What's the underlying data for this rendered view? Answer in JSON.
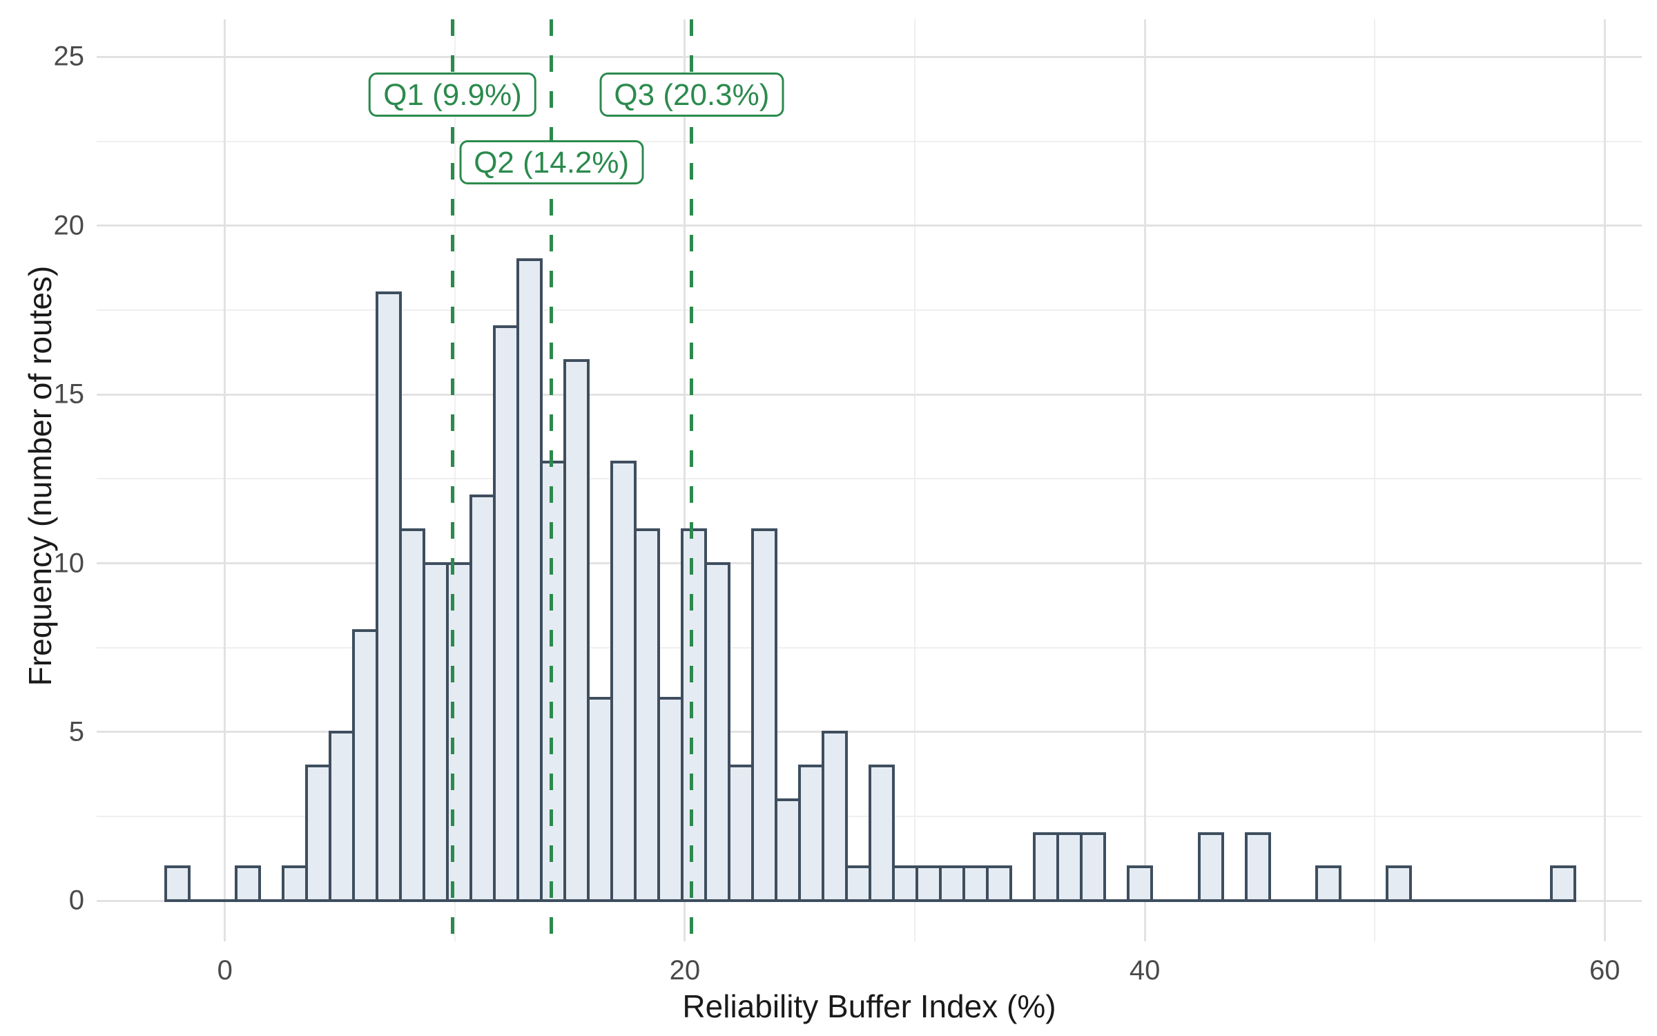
{
  "chart_data": {
    "type": "bar",
    "subtype": "histogram",
    "title": "",
    "xlabel": "Reliability Buffer Index (%)",
    "ylabel": "Frequency (number of routes)",
    "bin_start": -2.57,
    "bin_width": 1.021,
    "counts": [
      1,
      0,
      0,
      1,
      0,
      1,
      4,
      5,
      8,
      18,
      11,
      10,
      10,
      12,
      17,
      19,
      13,
      16,
      6,
      13,
      11,
      6,
      11,
      10,
      4,
      11,
      3,
      4,
      5,
      1,
      4,
      1,
      1,
      1,
      1,
      1,
      0,
      2,
      2,
      2,
      0,
      1,
      0,
      0,
      2,
      0,
      2,
      0,
      0,
      1,
      0,
      0,
      1,
      0,
      0,
      0,
      0,
      0,
      0,
      1
    ],
    "x_ticks": [
      0,
      20,
      40,
      60
    ],
    "x_minor_ticks": [
      10,
      30,
      50
    ],
    "y_ticks": [
      0,
      5,
      10,
      15,
      20,
      25
    ],
    "y_minor_ticks": [
      2.5,
      7.5,
      12.5,
      17.5,
      22.5
    ],
    "xlim": [
      -5.6,
      61.6
    ],
    "ylim": [
      -1.2,
      26.1
    ],
    "grid": "on",
    "legend": "none",
    "annotations": [
      {
        "id": "q1",
        "label": "Q1 (9.9%)",
        "value": 9.9,
        "row": 0
      },
      {
        "id": "q2",
        "label": "Q2 (14.2%)",
        "value": 14.2,
        "row": 1
      },
      {
        "id": "q3",
        "label": "Q3 (20.3%)",
        "value": 20.3,
        "row": 0
      }
    ],
    "colors": {
      "bar_fill": "#e5ebf2",
      "bar_stroke": "#3e4e5e",
      "quartile_green": "#2b8a4d",
      "grid_major": "#e2e2e2",
      "grid_minor": "#efefef",
      "tick_text": "#4a4a4a",
      "axis_title_text": "#1a1a1a"
    }
  }
}
